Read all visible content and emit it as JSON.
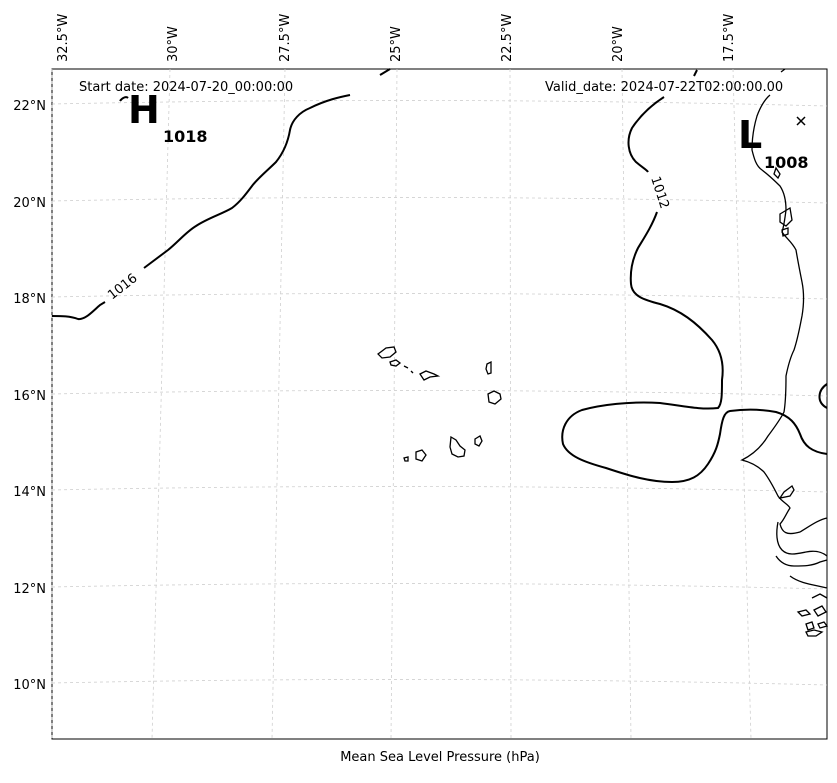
{
  "header": {
    "start_date": "Start date: 2024-07-20_00:00:00",
    "valid_date": "Valid_date: 2024-07-22T02:00:00.00"
  },
  "caption": "Mean Sea Level Pressure (hPa)",
  "lon_ticks": [
    "32.5°W",
    "30°W",
    "27.5°W",
    "25°W",
    "22.5°W",
    "20°W",
    "17.5°W"
  ],
  "lat_ticks": [
    "22°N",
    "20°N",
    "18°N",
    "16°N",
    "14°N",
    "12°N",
    "10°N"
  ],
  "pressure_centers": [
    {
      "type": "H",
      "value": "1018"
    },
    {
      "type": "L",
      "value": "1008"
    }
  ],
  "isobar_labels": [
    "1016",
    "1012"
  ]
}
